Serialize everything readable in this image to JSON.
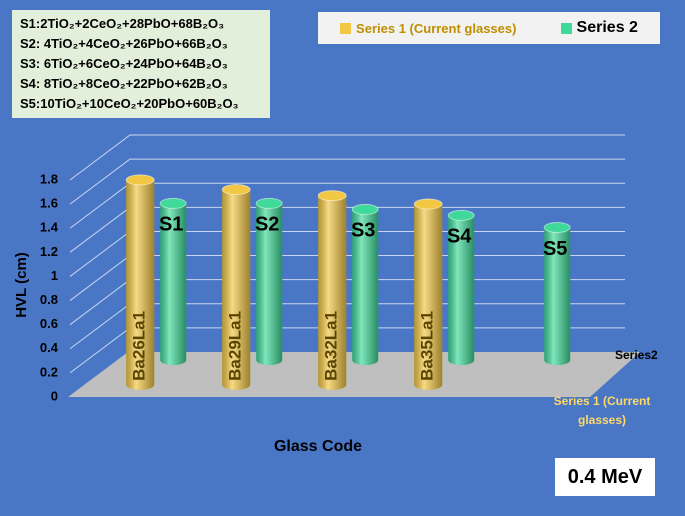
{
  "chart_data": {
    "type": "bar3d",
    "y_label": "HVL (cm)",
    "x_label": "Glass Code",
    "categories": [
      "S1",
      "S2",
      "S3",
      "S4",
      "S5"
    ],
    "series": [
      {
        "name": "Series 1 (Current glasses)",
        "color": "#f2c744",
        "labels": [
          "Ba26La1",
          "Ba29La1",
          "Ba32La1",
          "Ba35La1",
          null
        ],
        "values": [
          1.7,
          1.62,
          1.57,
          1.5,
          null
        ]
      },
      {
        "name": "Series 2",
        "color": "#3fd99a",
        "values": [
          1.3,
          1.3,
          1.25,
          1.2,
          1.1
        ]
      }
    ],
    "z_labels": [
      "Series 1 (Current glasses)",
      "Series2"
    ],
    "ylim": [
      0,
      1.8
    ],
    "yticks": [
      0,
      0.2,
      0.4,
      0.6,
      0.8,
      1,
      1.2,
      1.4,
      1.6,
      1.8
    ],
    "grid": true,
    "annotation": "0.4 MeV",
    "compositions": [
      "S1:2TiO₂+2CeO₂+28PbO+68B₂O₃",
      "S2: 4TiO₂+4CeO₂+26PbO+66B₂O₃",
      "S3: 6TiO₂+6CeO₂+24PbO+64B₂O₃",
      "S4: 8TiO₂+8CeO₂+22PbO+62B₂O₃",
      "S5:10TiO₂+10CeO₂+20PbO+60B₂O₃"
    ]
  }
}
